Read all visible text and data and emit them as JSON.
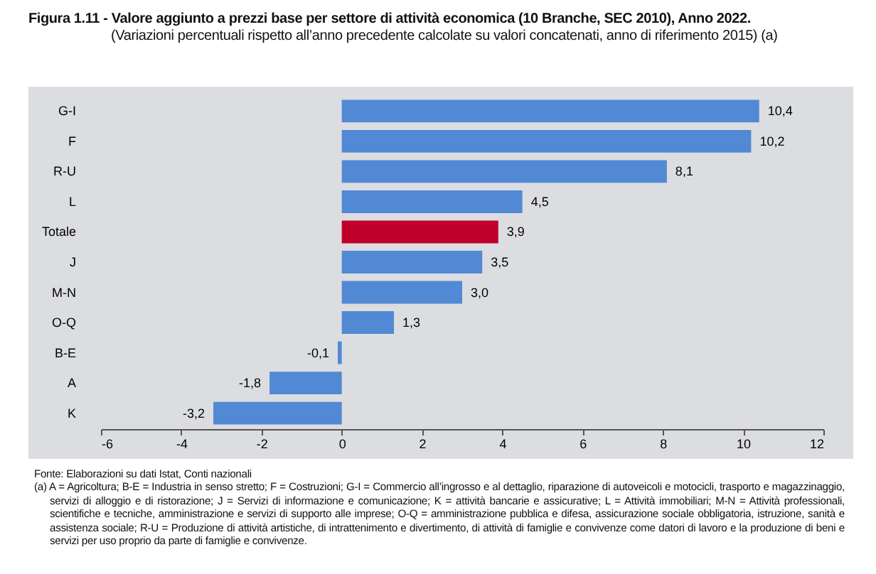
{
  "chart_data": {
    "type": "bar",
    "orientation": "horizontal",
    "title": "Figura 1.11 - Valore aggiunto a prezzi base per settore di attività economica (10 Branche, SEC 2010), Anno 2022.",
    "subtitle": "(Variazioni percentuali rispetto all’anno precedente calcolate su valori concatenati, anno di riferimento 2015) (a)",
    "categories": [
      "G-I",
      "F",
      "R-U",
      "L",
      "Totale",
      "J",
      "M-N",
      "O-Q",
      "B-E",
      "A",
      "K"
    ],
    "values": [
      10.4,
      10.2,
      8.1,
      4.5,
      3.9,
      3.5,
      3.0,
      1.3,
      -0.1,
      -1.8,
      -3.2
    ],
    "value_labels": [
      "10,4",
      "10,2",
      "8,1",
      "4,5",
      "3,9",
      "3,5",
      "3,0",
      "1,3",
      "-0,1",
      "-1,8",
      "-3,2"
    ],
    "colors": [
      "#5289d5",
      "#5289d5",
      "#5289d5",
      "#5289d5",
      "#c0002a",
      "#5289d5",
      "#5289d5",
      "#5289d5",
      "#5289d5",
      "#5289d5",
      "#5289d5"
    ],
    "xlim": [
      -6,
      12
    ],
    "xticks": [
      -6,
      -4,
      -2,
      0,
      2,
      4,
      6,
      8,
      10,
      12
    ],
    "annotations": [
      "Fonte: Elaborazioni su dati Istat, Conti nazionali",
      "(a) A = Agricoltura; B-E = Industria in senso stretto; F = Costruzioni; G-I = Commercio all’ingrosso e al dettaglio, riparazione di autoveicoli e motocicli, trasporto e magazzinaggio, servizi di alloggio e di ristorazione; J = Servizi di informazione e comunicazione; K = attività bancarie e assicurative; L = Attività immobiliari; M-N = Attività professionali, scientifiche e tecniche, amministrazione e servizi di supporto alle imprese; O-Q = amministrazione pubblica e difesa, assicurazione sociale obbligatoria, istruzione, sanità e assistenza sociale; R-U = Produzione di attività artistiche, di intrattenimento e divertimento, di attività di famiglie e convivenze come datori di lavoro e la produzione di beni e servizi per uso proprio da parte di famiglie e convivenze."
    ]
  }
}
